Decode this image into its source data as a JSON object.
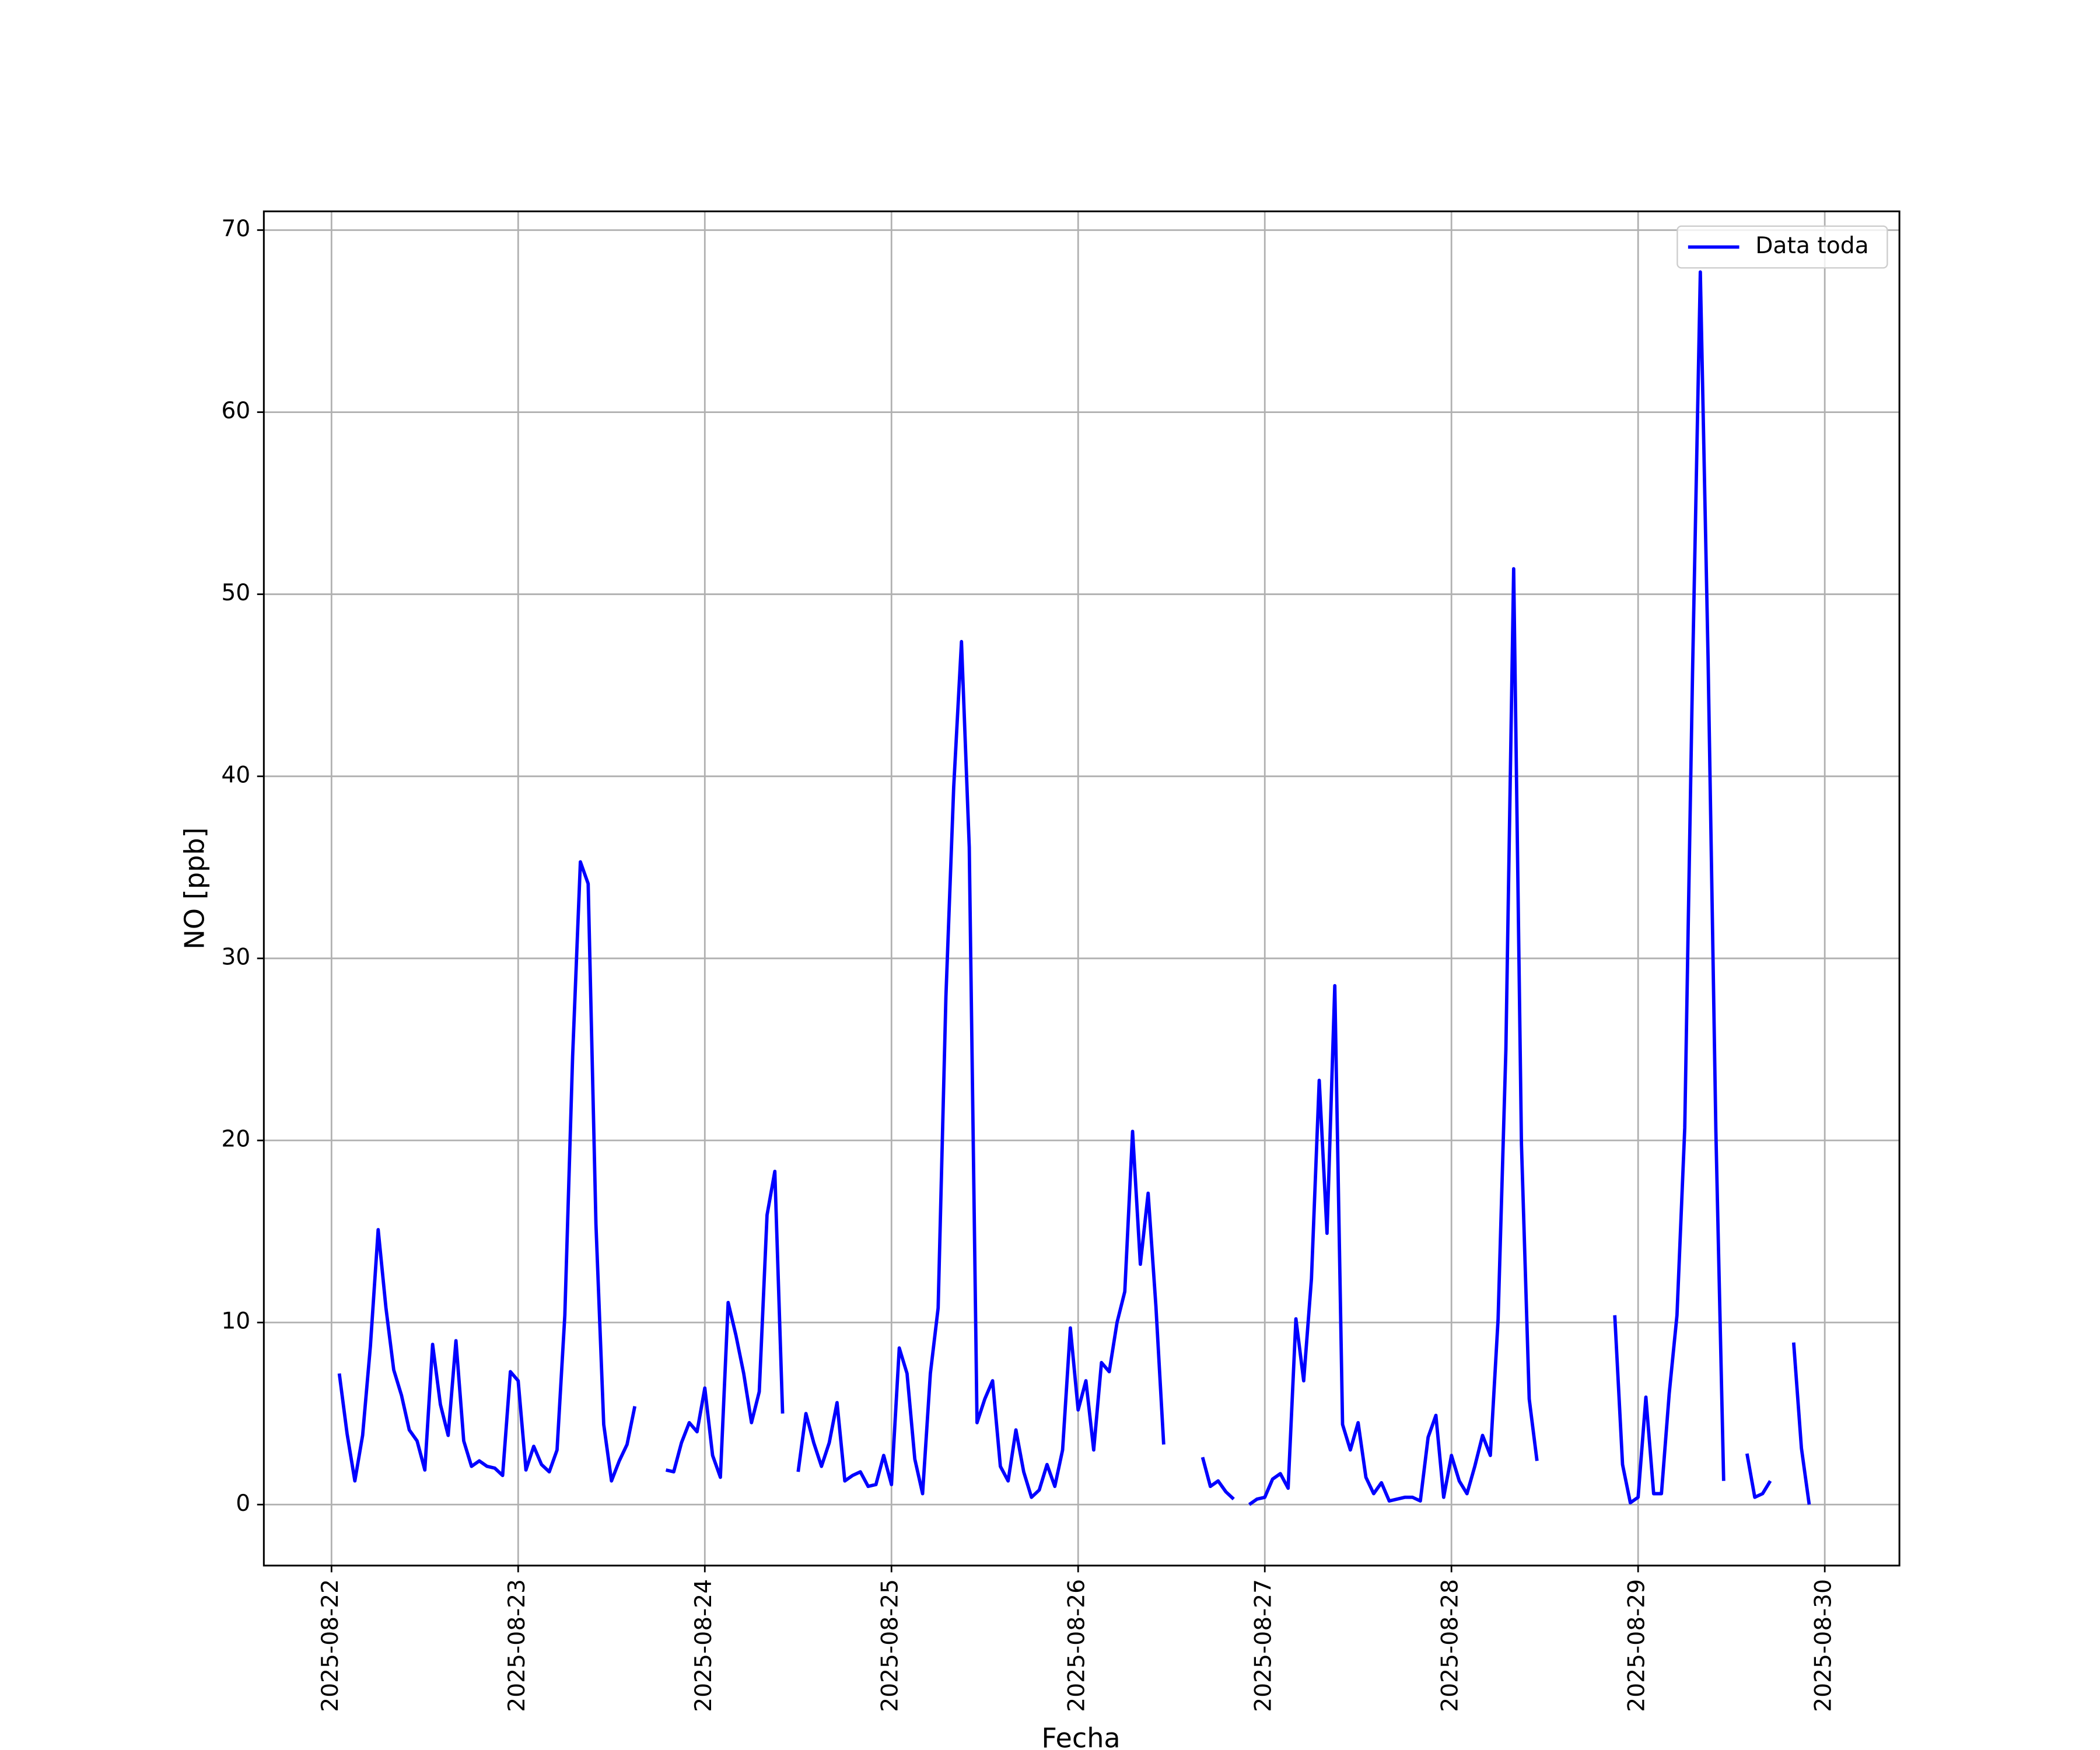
{
  "chart_data": {
    "type": "line",
    "xlabel": "Fecha",
    "ylabel": "NO [ppb]",
    "x": [
      "2025-08-22 01:00",
      "2025-08-22 02:00",
      "2025-08-22 03:00",
      "2025-08-22 04:00",
      "2025-08-22 05:00",
      "2025-08-22 06:00",
      "2025-08-22 07:00",
      "2025-08-22 08:00",
      "2025-08-22 09:00",
      "2025-08-22 10:00",
      "2025-08-22 11:00",
      "2025-08-22 12:00",
      "2025-08-22 13:00",
      "2025-08-22 14:00",
      "2025-08-22 15:00",
      "2025-08-22 16:00",
      "2025-08-22 17:00",
      "2025-08-22 18:00",
      "2025-08-22 19:00",
      "2025-08-22 20:00",
      "2025-08-22 21:00",
      "2025-08-22 22:00",
      "2025-08-22 23:00",
      "2025-08-23 00:00",
      "2025-08-23 01:00",
      "2025-08-23 02:00",
      "2025-08-23 03:00",
      "2025-08-23 04:00",
      "2025-08-23 05:00",
      "2025-08-23 06:00",
      "2025-08-23 07:00",
      "2025-08-23 08:00",
      "2025-08-23 09:00",
      "2025-08-23 10:00",
      "2025-08-23 11:00",
      "2025-08-23 12:00",
      "2025-08-23 13:00",
      "2025-08-23 14:00",
      "2025-08-23 15:00",
      "2025-08-23 16:00",
      "2025-08-23 17:00",
      "2025-08-23 18:00",
      "2025-08-23 19:00",
      "2025-08-23 20:00",
      "2025-08-23 21:00",
      "2025-08-23 22:00",
      "2025-08-23 23:00",
      "2025-08-24 00:00",
      "2025-08-24 01:00",
      "2025-08-24 02:00",
      "2025-08-24 03:00",
      "2025-08-24 04:00",
      "2025-08-24 05:00",
      "2025-08-24 06:00",
      "2025-08-24 07:00",
      "2025-08-24 08:00",
      "2025-08-24 09:00",
      "2025-08-24 10:00",
      "2025-08-24 11:00",
      "2025-08-24 12:00",
      "2025-08-24 13:00",
      "2025-08-24 14:00",
      "2025-08-24 15:00",
      "2025-08-24 16:00",
      "2025-08-24 17:00",
      "2025-08-24 18:00",
      "2025-08-24 19:00",
      "2025-08-24 20:00",
      "2025-08-24 21:00",
      "2025-08-24 22:00",
      "2025-08-24 23:00",
      "2025-08-25 00:00",
      "2025-08-25 01:00",
      "2025-08-25 02:00",
      "2025-08-25 03:00",
      "2025-08-25 04:00",
      "2025-08-25 05:00",
      "2025-08-25 06:00",
      "2025-08-25 07:00",
      "2025-08-25 08:00",
      "2025-08-25 09:00",
      "2025-08-25 10:00",
      "2025-08-25 11:00",
      "2025-08-25 12:00",
      "2025-08-25 13:00",
      "2025-08-25 14:00",
      "2025-08-25 15:00",
      "2025-08-25 16:00",
      "2025-08-25 17:00",
      "2025-08-25 18:00",
      "2025-08-25 19:00",
      "2025-08-25 20:00",
      "2025-08-25 21:00",
      "2025-08-25 22:00",
      "2025-08-25 23:00",
      "2025-08-26 00:00",
      "2025-08-26 01:00",
      "2025-08-26 02:00",
      "2025-08-26 03:00",
      "2025-08-26 04:00",
      "2025-08-26 05:00",
      "2025-08-26 06:00",
      "2025-08-26 07:00",
      "2025-08-26 08:00",
      "2025-08-26 09:00",
      "2025-08-26 10:00",
      "2025-08-26 11:00",
      "2025-08-26 12:00",
      "2025-08-26 13:00",
      "2025-08-26 14:00",
      "2025-08-26 15:00",
      "2025-08-26 16:00",
      "2025-08-26 17:00",
      "2025-08-26 18:00",
      "2025-08-26 19:00",
      "2025-08-26 20:00",
      "2025-08-26 21:00",
      "2025-08-26 22:00",
      "2025-08-26 23:00",
      "2025-08-27 00:00",
      "2025-08-27 01:00",
      "2025-08-27 02:00",
      "2025-08-27 03:00",
      "2025-08-27 04:00",
      "2025-08-27 05:00",
      "2025-08-27 06:00",
      "2025-08-27 07:00",
      "2025-08-27 08:00",
      "2025-08-27 09:00",
      "2025-08-27 10:00",
      "2025-08-27 11:00",
      "2025-08-27 12:00",
      "2025-08-27 13:00",
      "2025-08-27 14:00",
      "2025-08-27 15:00",
      "2025-08-27 16:00",
      "2025-08-27 17:00",
      "2025-08-27 18:00",
      "2025-08-27 19:00",
      "2025-08-27 20:00",
      "2025-08-27 21:00",
      "2025-08-27 22:00",
      "2025-08-27 23:00",
      "2025-08-28 00:00",
      "2025-08-28 01:00",
      "2025-08-28 02:00",
      "2025-08-28 03:00",
      "2025-08-28 04:00",
      "2025-08-28 05:00",
      "2025-08-28 06:00",
      "2025-08-28 07:00",
      "2025-08-28 08:00",
      "2025-08-28 09:00",
      "2025-08-28 10:00",
      "2025-08-28 11:00",
      "2025-08-28 12:00",
      "2025-08-28 13:00",
      "2025-08-28 14:00",
      "2025-08-28 15:00",
      "2025-08-28 16:00",
      "2025-08-28 17:00",
      "2025-08-28 18:00",
      "2025-08-28 19:00",
      "2025-08-28 20:00",
      "2025-08-28 21:00",
      "2025-08-28 22:00",
      "2025-08-28 23:00",
      "2025-08-29 00:00",
      "2025-08-29 01:00",
      "2025-08-29 02:00",
      "2025-08-29 03:00",
      "2025-08-29 04:00",
      "2025-08-29 05:00",
      "2025-08-29 06:00",
      "2025-08-29 07:00",
      "2025-08-29 08:00",
      "2025-08-29 09:00",
      "2025-08-29 10:00",
      "2025-08-29 11:00",
      "2025-08-29 12:00",
      "2025-08-29 13:00",
      "2025-08-29 14:00",
      "2025-08-29 15:00",
      "2025-08-29 16:00",
      "2025-08-29 17:00",
      "2025-08-29 18:00",
      "2025-08-29 19:00",
      "2025-08-29 20:00",
      "2025-08-29 21:00",
      "2025-08-29 22:00"
    ],
    "series": [
      {
        "name": "Data toda",
        "color": "#0000ff",
        "values": [
          7.2,
          3.9,
          1.3,
          3.8,
          8.7,
          15.1,
          10.8,
          7.4,
          6.0,
          4.1,
          3.5,
          1.9,
          8.8,
          5.5,
          3.8,
          9.0,
          3.5,
          2.1,
          2.4,
          2.1,
          2.0,
          1.6,
          7.3,
          6.8,
          1.9,
          3.2,
          2.2,
          1.8,
          3.0,
          10.4,
          24.6,
          35.3,
          34.1,
          15.4,
          4.4,
          1.3,
          2.4,
          3.3,
          5.4,
          null,
          null,
          null,
          1.9,
          1.8,
          3.4,
          4.5,
          4.0,
          6.4,
          2.7,
          1.5,
          11.1,
          9.3,
          7.2,
          4.5,
          6.2,
          15.9,
          18.3,
          5.0,
          null,
          1.8,
          5.0,
          3.4,
          2.1,
          3.4,
          5.6,
          1.3,
          1.6,
          1.8,
          1.0,
          1.1,
          2.7,
          1.1,
          8.6,
          7.2,
          2.5,
          0.6,
          7.2,
          10.8,
          27.9,
          39.4,
          47.4,
          36.1,
          4.5,
          5.8,
          6.8,
          2.1,
          1.3,
          4.1,
          1.8,
          0.4,
          0.8,
          2.2,
          1.0,
          3.0,
          9.7,
          5.2,
          6.8,
          3.0,
          7.8,
          7.3,
          10.0,
          11.7,
          20.5,
          13.2,
          17.1,
          10.9,
          3.3,
          null,
          null,
          null,
          null,
          2.6,
          1.0,
          1.3,
          0.7,
          0.3,
          null,
          0.0,
          0.3,
          0.4,
          1.4,
          1.7,
          0.9,
          10.2,
          6.8,
          12.4,
          23.3,
          14.9,
          28.5,
          4.4,
          3.0,
          4.5,
          1.5,
          0.6,
          1.2,
          0.2,
          0.3,
          0.4,
          0.4,
          0.2,
          3.7,
          4.9,
          0.4,
          2.7,
          1.3,
          0.6,
          2.1,
          3.8,
          2.7,
          10.2,
          25.0,
          51.4,
          19.8,
          5.8,
          2.4,
          null,
          null,
          null,
          null,
          null,
          null,
          null,
          null,
          null,
          10.4,
          2.2,
          0.1,
          0.4,
          5.9,
          0.6,
          0.6,
          6.1,
          10.4,
          20.7,
          45.7,
          67.7,
          46.4,
          20.5,
          1.3,
          null,
          null,
          2.8,
          0.4,
          0.6,
          1.3,
          null,
          null,
          8.9,
          3.1,
          0.0
        ]
      }
    ],
    "xlim": [
      "2025-08-21 15:18",
      "2025-08-30 09:36"
    ],
    "xticks": [
      "2025-08-22",
      "2025-08-23",
      "2025-08-24",
      "2025-08-25",
      "2025-08-26",
      "2025-08-27",
      "2025-08-28",
      "2025-08-29",
      "2025-08-30"
    ],
    "ylim": [
      -3.35,
      71.03
    ],
    "yticks": [
      0,
      10,
      20,
      30,
      40,
      50,
      60,
      70
    ],
    "grid": true,
    "legend": "upper right"
  }
}
